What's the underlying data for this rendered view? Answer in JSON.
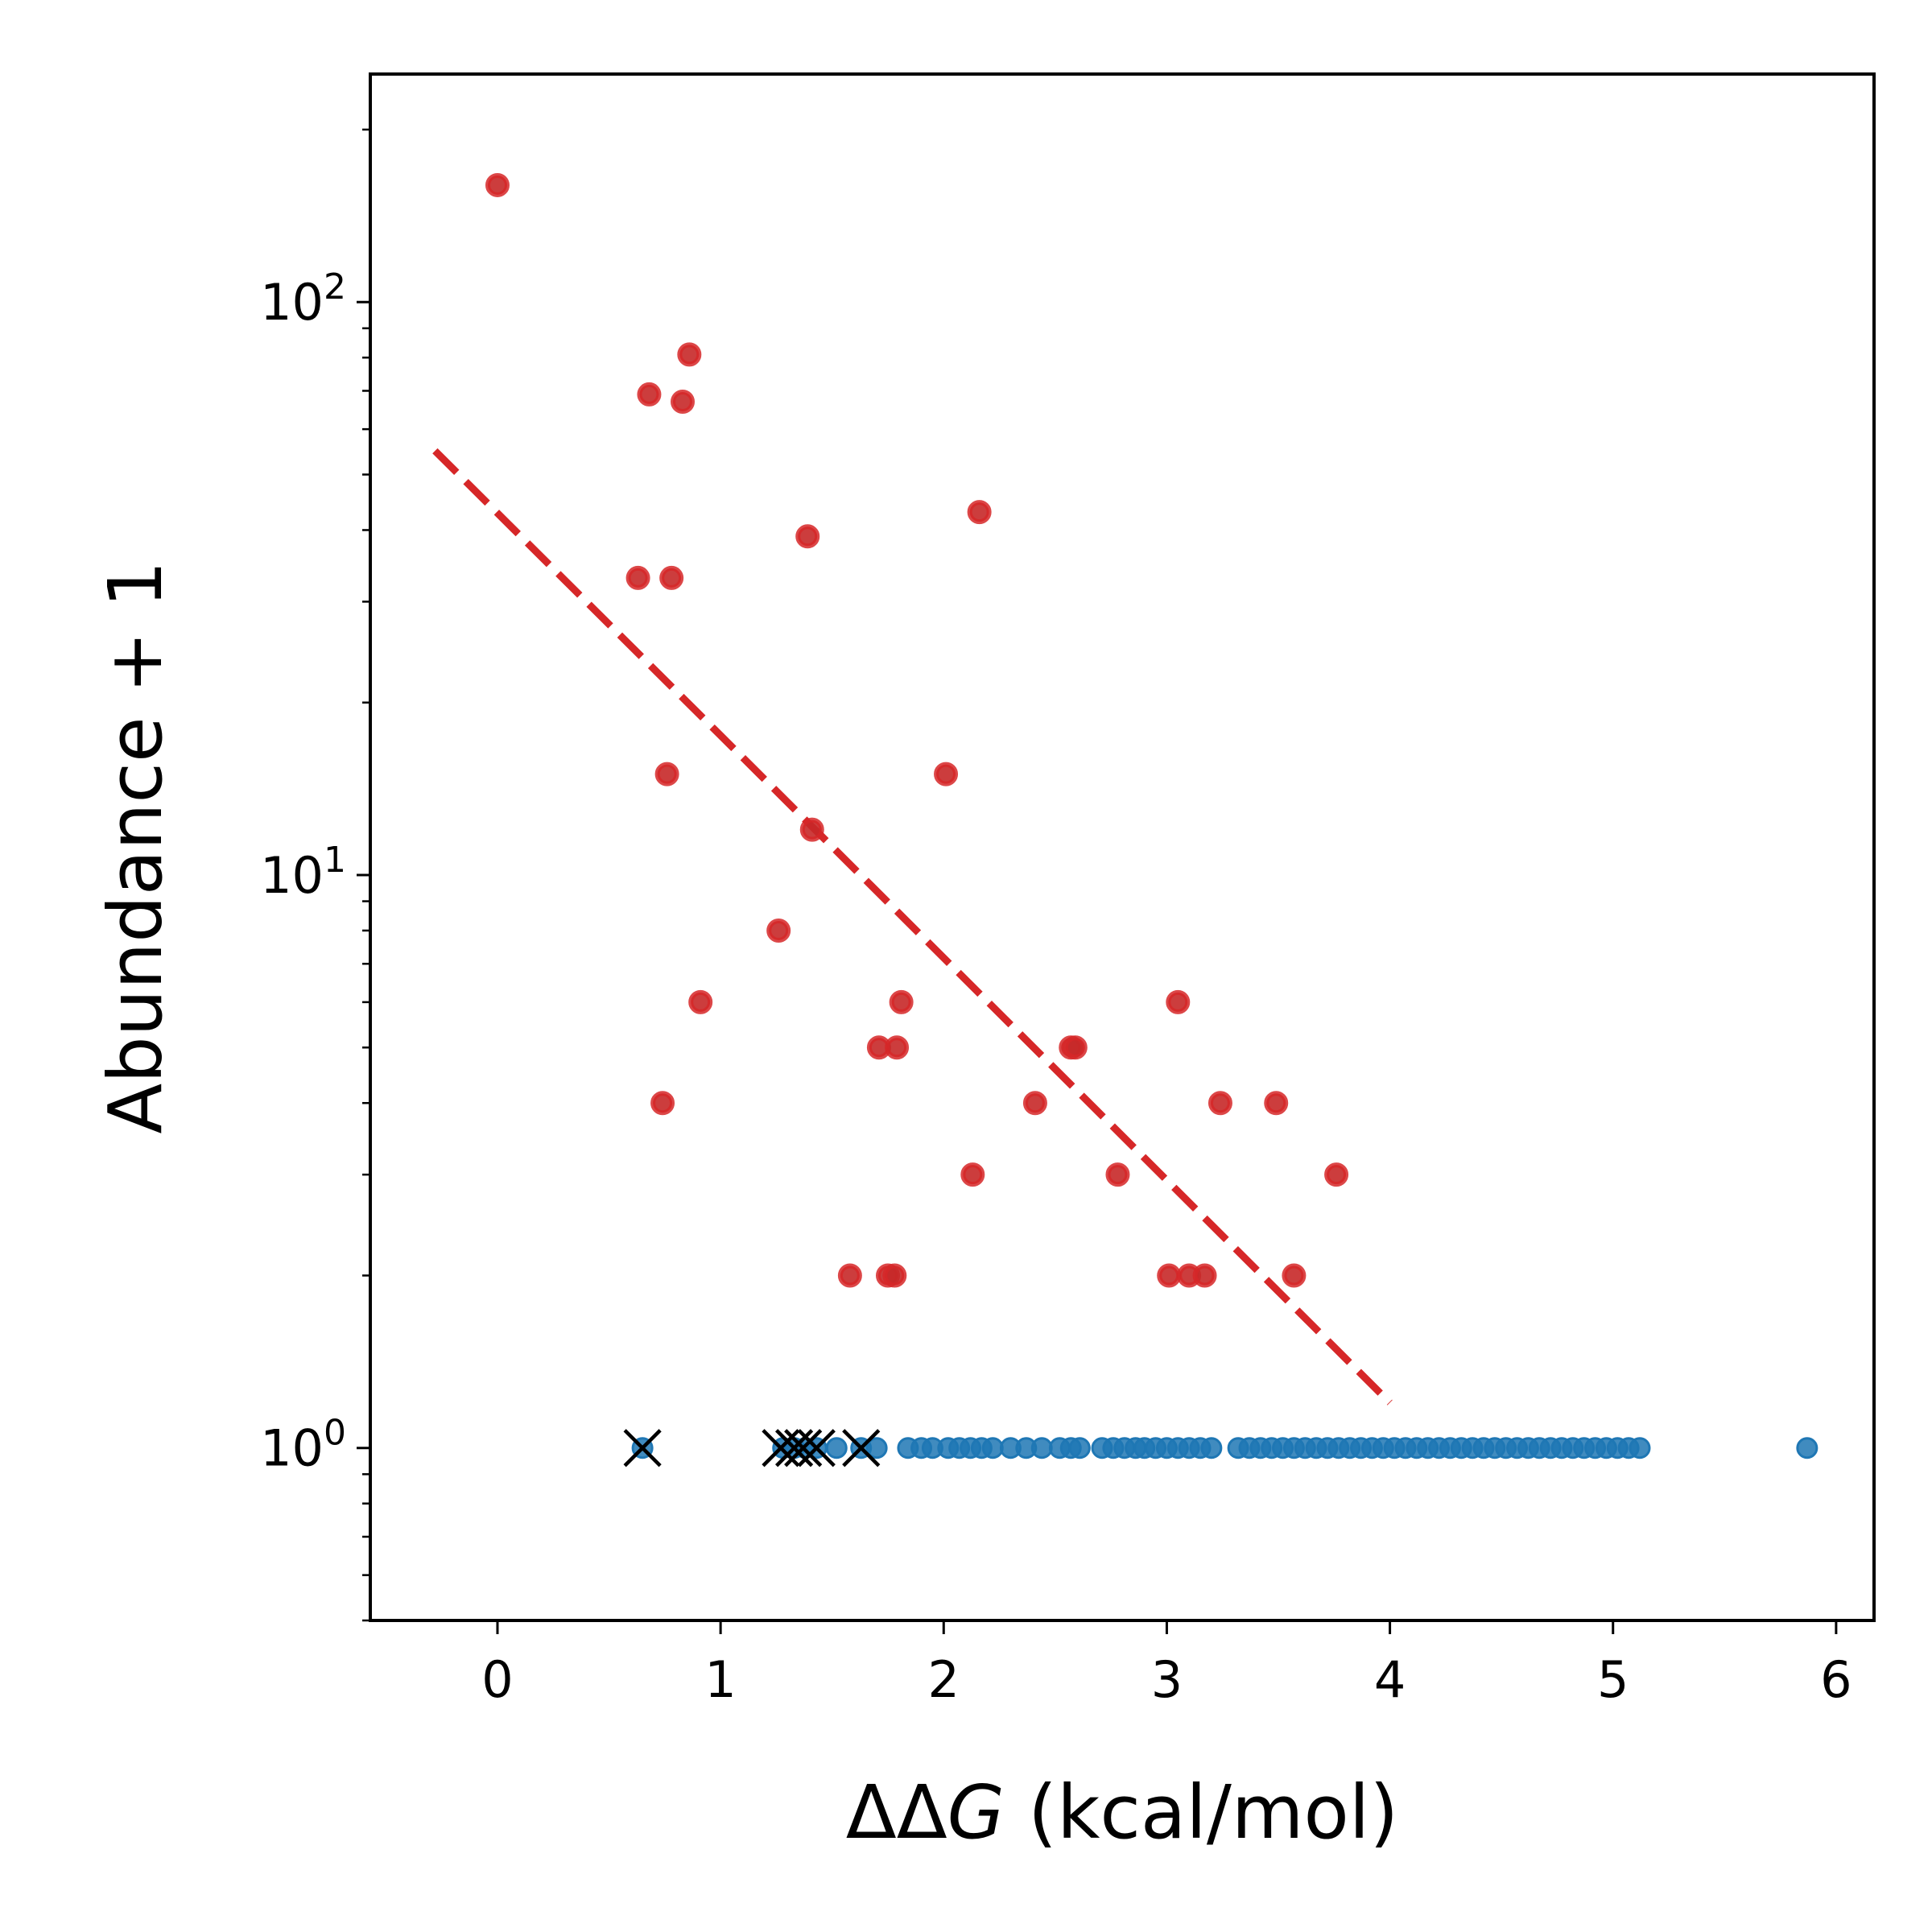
{
  "chart_data": {
    "type": "scatter",
    "title": "",
    "xlabel": "ΔΔG (kcal/mol)",
    "ylabel": "Abundance + 1",
    "xlim": [
      -0.57,
      6.17
    ],
    "ylim": [
      0.5,
      250
    ],
    "yscale": "log",
    "grid": false,
    "x_ticks": [
      0,
      1,
      2,
      3,
      4,
      5,
      6
    ],
    "y_ticks": [
      {
        "value": 1,
        "base": "10",
        "exp": "0"
      },
      {
        "value": 10,
        "base": "10",
        "exp": "1"
      },
      {
        "value": 100,
        "base": "10",
        "exp": "2"
      }
    ],
    "colors": {
      "observed": "#d62728",
      "unobserved": "#1f77b4",
      "excluded": "#000000",
      "fit": "#d62728"
    },
    "series": [
      {
        "points": [
          [
            0.0,
            160
          ],
          [
            0.63,
            33
          ],
          [
            0.68,
            69
          ],
          [
            0.74,
            4
          ],
          [
            0.76,
            15
          ],
          [
            0.78,
            33
          ],
          [
            0.83,
            67
          ],
          [
            0.86,
            81
          ],
          [
            0.91,
            6
          ],
          [
            1.26,
            8
          ],
          [
            1.39,
            39
          ],
          [
            1.41,
            12
          ],
          [
            1.58,
            2
          ],
          [
            1.71,
            5
          ],
          [
            1.75,
            2
          ],
          [
            1.78,
            2
          ],
          [
            1.79,
            5
          ],
          [
            1.81,
            6
          ],
          [
            2.01,
            15
          ],
          [
            2.13,
            3
          ],
          [
            2.16,
            43
          ],
          [
            2.41,
            4
          ],
          [
            2.57,
            5
          ],
          [
            2.59,
            5
          ],
          [
            2.78,
            3
          ],
          [
            3.01,
            2
          ],
          [
            3.05,
            6
          ],
          [
            3.1,
            2
          ],
          [
            3.17,
            2
          ],
          [
            3.24,
            4
          ],
          [
            3.49,
            4
          ],
          [
            3.57,
            2
          ],
          [
            3.76,
            3
          ]
        ]
      },
      {
        "points": [
          [
            0.65,
            1
          ],
          [
            1.28,
            1
          ],
          [
            1.33,
            1
          ],
          [
            1.38,
            1
          ],
          [
            1.43,
            1
          ],
          [
            1.52,
            1
          ],
          [
            1.63,
            1
          ],
          [
            1.7,
            1
          ],
          [
            1.84,
            1
          ],
          [
            1.9,
            1
          ],
          [
            1.95,
            1
          ],
          [
            2.02,
            1
          ],
          [
            2.07,
            1
          ],
          [
            2.12,
            1
          ],
          [
            2.17,
            1
          ],
          [
            2.22,
            1
          ],
          [
            2.3,
            1
          ],
          [
            2.37,
            1
          ],
          [
            2.44,
            1
          ],
          [
            2.52,
            1
          ],
          [
            2.57,
            1
          ],
          [
            2.61,
            1
          ],
          [
            2.71,
            1
          ],
          [
            2.76,
            1
          ],
          [
            2.81,
            1
          ],
          [
            2.86,
            1
          ],
          [
            2.9,
            1
          ],
          [
            2.95,
            1
          ],
          [
            3.0,
            1
          ],
          [
            3.05,
            1
          ],
          [
            3.1,
            1
          ],
          [
            3.15,
            1
          ],
          [
            3.2,
            1
          ],
          [
            3.32,
            1
          ],
          [
            3.37,
            1
          ],
          [
            3.42,
            1
          ],
          [
            3.47,
            1
          ],
          [
            3.52,
            1
          ],
          [
            3.57,
            1
          ],
          [
            3.62,
            1
          ],
          [
            3.67,
            1
          ],
          [
            3.72,
            1
          ],
          [
            3.77,
            1
          ],
          [
            3.82,
            1
          ],
          [
            3.87,
            1
          ],
          [
            3.92,
            1
          ],
          [
            3.97,
            1
          ],
          [
            4.02,
            1
          ],
          [
            4.07,
            1
          ],
          [
            4.12,
            1
          ],
          [
            4.17,
            1
          ],
          [
            4.22,
            1
          ],
          [
            4.27,
            1
          ],
          [
            4.32,
            1
          ],
          [
            4.37,
            1
          ],
          [
            4.42,
            1
          ],
          [
            4.47,
            1
          ],
          [
            4.52,
            1
          ],
          [
            4.57,
            1
          ],
          [
            4.62,
            1
          ],
          [
            4.67,
            1
          ],
          [
            4.72,
            1
          ],
          [
            4.77,
            1
          ],
          [
            4.82,
            1
          ],
          [
            4.87,
            1
          ],
          [
            4.92,
            1
          ],
          [
            4.97,
            1
          ],
          [
            5.02,
            1
          ],
          [
            5.07,
            1
          ],
          [
            5.12,
            1
          ],
          [
            5.87,
            1
          ]
        ]
      },
      {
        "marker": "x",
        "points": [
          [
            0.65,
            1
          ],
          [
            1.27,
            1
          ],
          [
            1.33,
            1
          ],
          [
            1.37,
            1
          ],
          [
            1.43,
            1
          ],
          [
            1.63,
            1
          ]
        ]
      }
    ],
    "fit_line": {
      "style": "dashed",
      "points": [
        [
          -0.28,
          55
        ],
        [
          4.0,
          1.2
        ]
      ]
    }
  }
}
